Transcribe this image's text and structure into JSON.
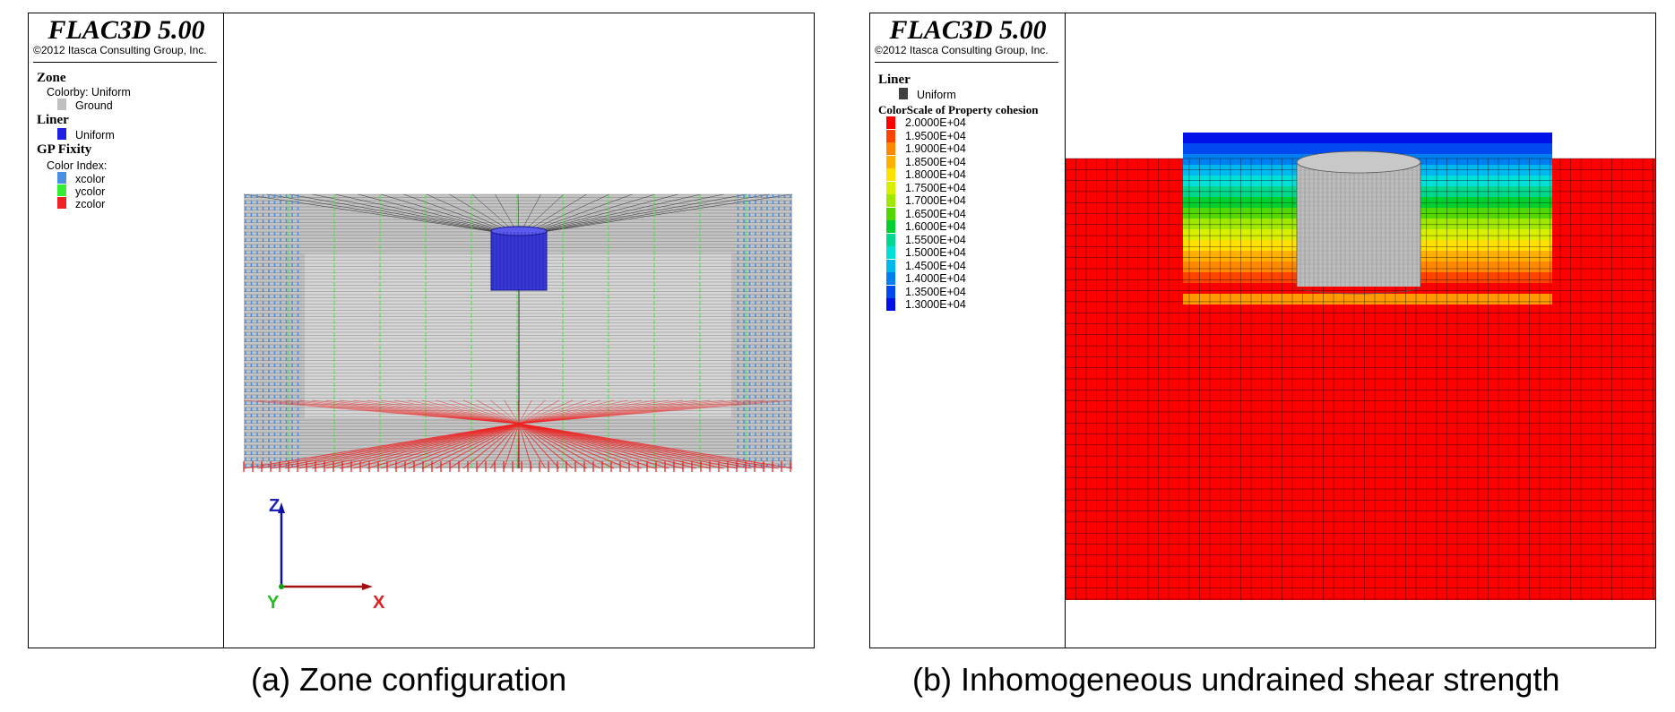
{
  "left": {
    "title": "FLAC3D 5.00",
    "copyright": "©2012 Itasca Consulting Group, Inc.",
    "zone_header": "Zone",
    "colorby": "Colorby: Uniform",
    "ground": "Ground",
    "liner_header": "Liner",
    "uniform": "Uniform",
    "fixity_header": "GP Fixity",
    "color_index": "Color Index:",
    "xcolor": "xcolor",
    "ycolor": "ycolor",
    "zcolor": "zcolor",
    "axis_z": "Z",
    "axis_x": "X",
    "axis_y": "Y",
    "caption": "(a) Zone configuration"
  },
  "right": {
    "title": "FLAC3D 5.00",
    "copyright": "©2012 Itasca Consulting Group, Inc.",
    "liner_header": "Liner",
    "uniform": "Uniform",
    "colorscale_header": "ColorScale of Property cohesion",
    "scale": [
      {
        "label": "2.0000E+04",
        "color": "#ff0000"
      },
      {
        "label": "1.9500E+04",
        "color": "#ff4400"
      },
      {
        "label": "1.9000E+04",
        "color": "#ff8800"
      },
      {
        "label": "1.8500E+04",
        "color": "#ffb000"
      },
      {
        "label": "1.8000E+04",
        "color": "#ffe000"
      },
      {
        "label": "1.7500E+04",
        "color": "#d8f000"
      },
      {
        "label": "1.7000E+04",
        "color": "#a0e800"
      },
      {
        "label": "1.6500E+04",
        "color": "#50d800"
      },
      {
        "label": "1.6000E+04",
        "color": "#00d030"
      },
      {
        "label": "1.5500E+04",
        "color": "#00d890"
      },
      {
        "label": "1.5000E+04",
        "color": "#00e0d8"
      },
      {
        "label": "1.4500E+04",
        "color": "#00b8f0"
      },
      {
        "label": "1.4000E+04",
        "color": "#0080f0"
      },
      {
        "label": "1.3500E+04",
        "color": "#0048f0"
      },
      {
        "label": "1.3000E+04",
        "color": "#0010e8"
      }
    ],
    "caption": "(b) Inhomogeneous undrained shear strength"
  },
  "colors": {
    "ground": "#c0c0c0",
    "liner_blue": "#2020e0",
    "liner_gray": "#404040",
    "xcolor": "#4a8fe0",
    "ycolor": "#33ee33",
    "zcolor": "#ee2222",
    "soil_red": "#ff0000"
  }
}
